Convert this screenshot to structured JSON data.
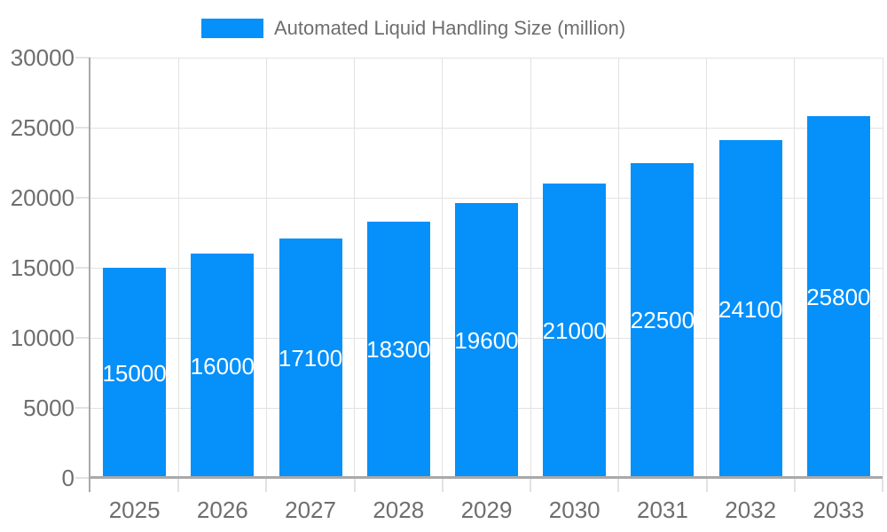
{
  "legend": {
    "label": "Automated Liquid Handling Size (million)"
  },
  "chart_data": {
    "type": "bar",
    "title": "",
    "series_name": "Automated Liquid Handling Size (million)",
    "categories": [
      "2025",
      "2026",
      "2027",
      "2028",
      "2029",
      "2030",
      "2031",
      "2032",
      "2033"
    ],
    "values": [
      15000,
      16000,
      17100,
      18300,
      19600,
      21000,
      22500,
      24100,
      25800
    ],
    "xlabel": "",
    "ylabel": "",
    "ylim": [
      0,
      30000
    ],
    "yticks": [
      0,
      5000,
      10000,
      15000,
      20000,
      25000,
      30000
    ],
    "grid": true,
    "legend_position": "top-center",
    "value_labels_position": "inside-middle",
    "colors": {
      "bar": "#0590fa",
      "bar_label": "#ffffff",
      "axis_text": "#6e6e6e",
      "grid_line": "#e2e2e2",
      "axis_line": "#a9a9a9",
      "background": "#ffffff"
    }
  }
}
